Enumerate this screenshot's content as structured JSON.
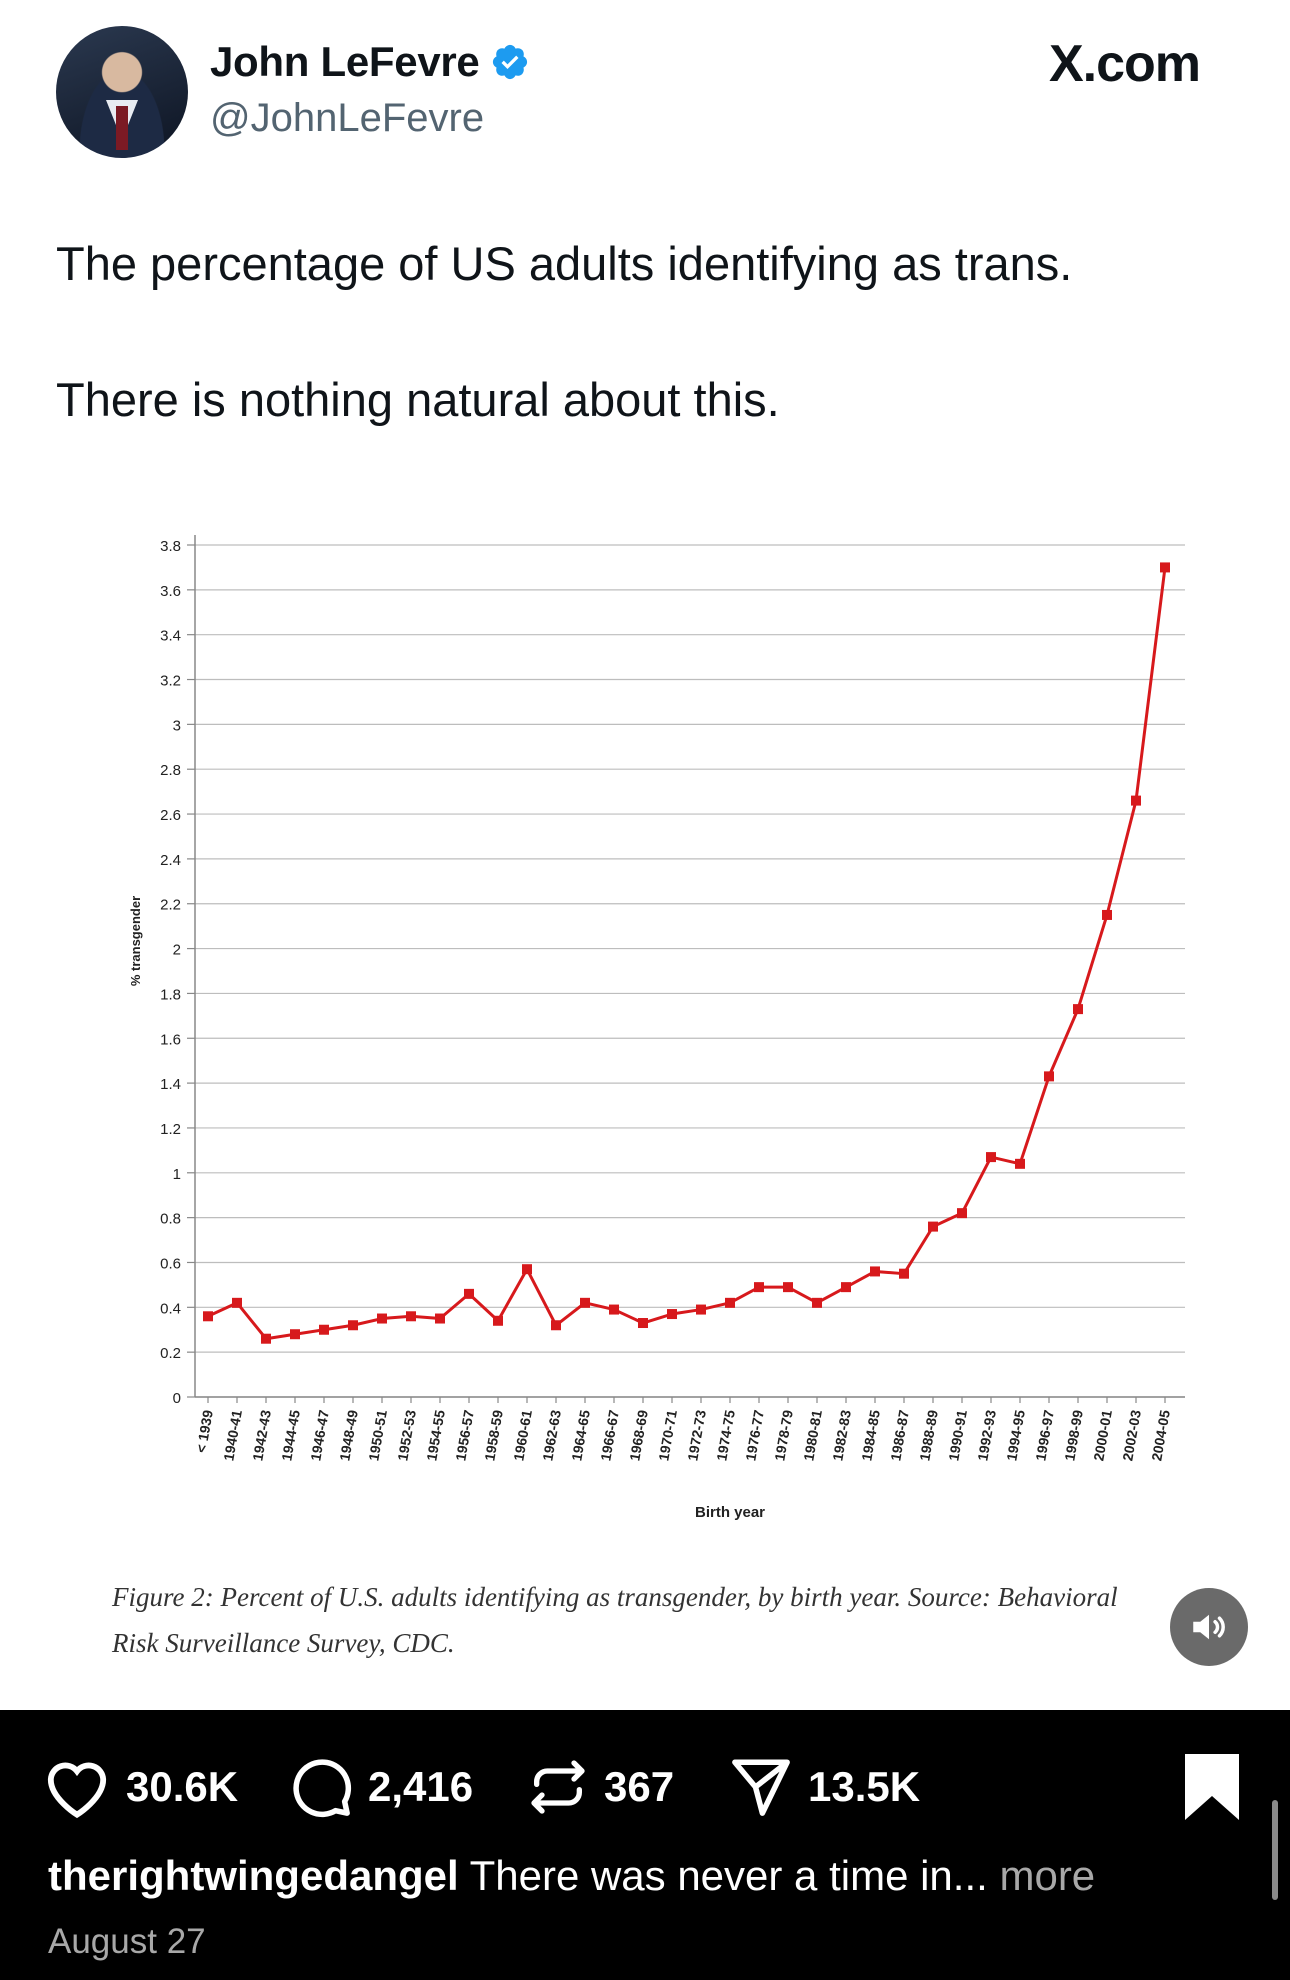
{
  "post": {
    "author_name": "John LeFevre",
    "handle": "@JohnLeFevre",
    "site_label": "X.com",
    "text_line1": "The percentage of US adults identifying as trans.",
    "text_line2": "There is nothing natural about this.",
    "colors": {
      "verified": "#1d9bf0",
      "series": "#d7191c",
      "grid": "#bdbdbd"
    }
  },
  "chart_data": {
    "type": "line",
    "title": "",
    "xlabel": "Birth year",
    "ylabel": "% transgender",
    "ylim": [
      0,
      3.8
    ],
    "yticks": [
      0,
      0.2,
      0.4,
      0.6,
      0.8,
      1,
      1.2,
      1.4,
      1.6,
      1.8,
      2,
      2.2,
      2.4,
      2.6,
      2.8,
      3,
      3.2,
      3.4,
      3.6,
      3.8
    ],
    "grid": true,
    "categories": [
      "< 1939",
      "1940-41",
      "1942-43",
      "1944-45",
      "1946-47",
      "1948-49",
      "1950-51",
      "1952-53",
      "1954-55",
      "1956-57",
      "1958-59",
      "1960-61",
      "1962-63",
      "1964-65",
      "1966-67",
      "1968-69",
      "1970-71",
      "1972-73",
      "1974-75",
      "1976-77",
      "1978-79",
      "1980-81",
      "1982-83",
      "1984-85",
      "1986-87",
      "1988-89",
      "1990-91",
      "1992-93",
      "1994-95",
      "1996-97",
      "1998-99",
      "2000-01",
      "2002-03",
      "2004-05"
    ],
    "values": [
      0.36,
      0.42,
      0.26,
      0.28,
      0.3,
      0.32,
      0.35,
      0.36,
      0.35,
      0.46,
      0.34,
      0.57,
      0.32,
      0.42,
      0.39,
      0.33,
      0.37,
      0.39,
      0.42,
      0.49,
      0.49,
      0.42,
      0.49,
      0.56,
      0.55,
      0.76,
      0.82,
      1.07,
      1.04,
      1.43,
      1.73,
      2.15,
      2.66,
      3.7
    ],
    "caption_line1": "Figure 2: Percent of U.S. adults identifying as transgender, by birth year. Source: Behavioral",
    "caption_line2": "Risk Surveillance Survey, CDC."
  },
  "actions": {
    "likes": "30.6K",
    "comments": "2,416",
    "reposts": "367",
    "shares": "13.5K"
  },
  "caption": {
    "username": "therightwingedangel",
    "text": " There was never a time in... ",
    "more": "more",
    "date": "August 27"
  }
}
